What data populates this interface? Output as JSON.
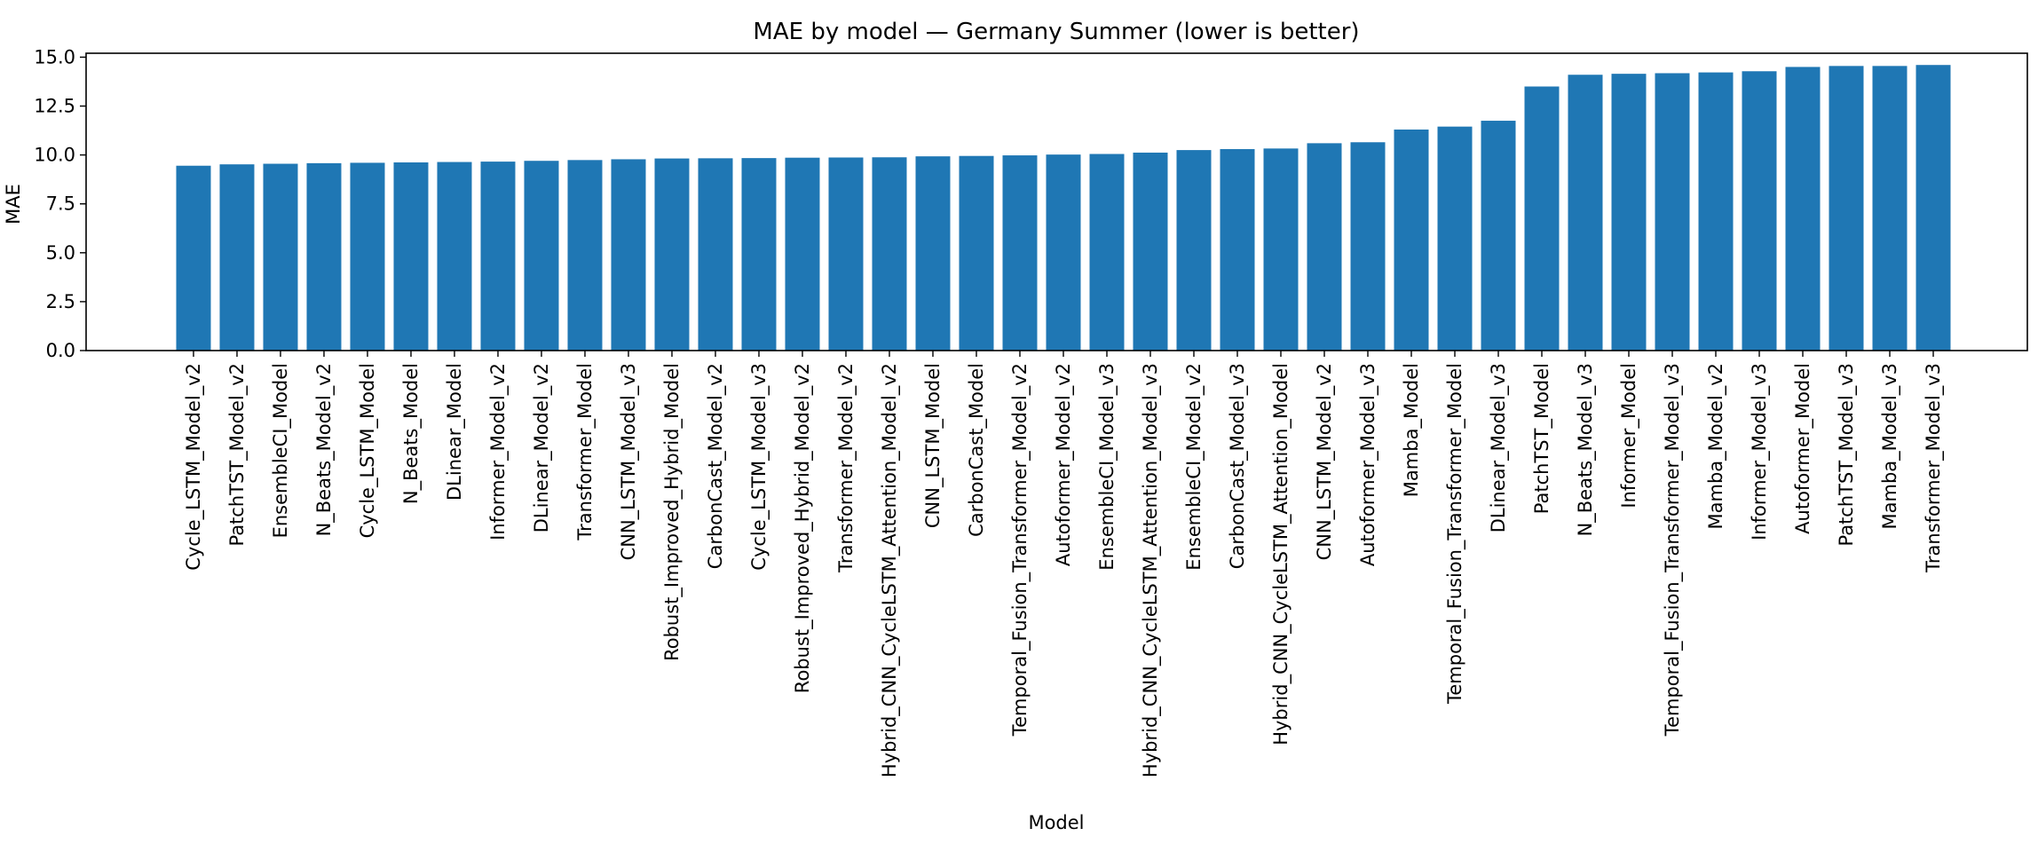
{
  "chart_data": {
    "type": "bar",
    "title": "MAE by model — Germany Summer (lower is better)",
    "xlabel": "Model",
    "ylabel": "MAE",
    "ylim": [
      0,
      15.2
    ],
    "yticks": [
      "0.0",
      "2.5",
      "5.0",
      "7.5",
      "10.0",
      "12.5",
      "15.0"
    ],
    "grid": false,
    "bar_color": "#1f77b4",
    "categories": [
      "Cycle_LSTM_Model_v2",
      "PatchTST_Model_v2",
      "EnsembleCI_Model",
      "N_Beats_Model_v2",
      "Cycle_LSTM_Model",
      "N_Beats_Model",
      "DLinear_Model",
      "Informer_Model_v2",
      "DLinear_Model_v2",
      "Transformer_Model",
      "CNN_LSTM_Model_v3",
      "Robust_Improved_Hybrid_Model",
      "CarbonCast_Model_v2",
      "Cycle_LSTM_Model_v3",
      "Robust_Improved_Hybrid_Model_v2",
      "Transformer_Model_v2",
      "Hybrid_CNN_CycleLSTM_Attention_Model_v2",
      "CNN_LSTM_Model",
      "CarbonCast_Model",
      "Temporal_Fusion_Transformer_Model_v2",
      "Autoformer_Model_v2",
      "EnsembleCI_Model_v3",
      "Hybrid_CNN_CycleLSTM_Attention_Model_v3",
      "EnsembleCI_Model_v2",
      "CarbonCast_Model_v3",
      "Hybrid_CNN_CycleLSTM_Attention_Model",
      "CNN_LSTM_Model_v2",
      "Autoformer_Model_v3",
      "Mamba_Model",
      "Temporal_Fusion_Transformer_Model",
      "DLinear_Model_v3",
      "PatchTST_Model",
      "N_Beats_Model_v3",
      "Informer_Model",
      "Temporal_Fusion_Transformer_Model_v3",
      "Mamba_Model_v2",
      "Informer_Model_v3",
      "Autoformer_Model",
      "PatchTST_Model_v3",
      "Mamba_Model_v3",
      "Transformer_Model_v3"
    ],
    "values": [
      9.45,
      9.52,
      9.55,
      9.58,
      9.6,
      9.62,
      9.64,
      9.66,
      9.7,
      9.74,
      9.78,
      9.82,
      9.83,
      9.84,
      9.86,
      9.87,
      9.88,
      9.93,
      9.95,
      9.98,
      10.02,
      10.05,
      10.12,
      10.25,
      10.3,
      10.33,
      10.6,
      10.65,
      11.3,
      11.45,
      11.75,
      13.5,
      14.1,
      14.15,
      14.18,
      14.22,
      14.28,
      14.5,
      14.55,
      14.55,
      14.6
    ]
  }
}
